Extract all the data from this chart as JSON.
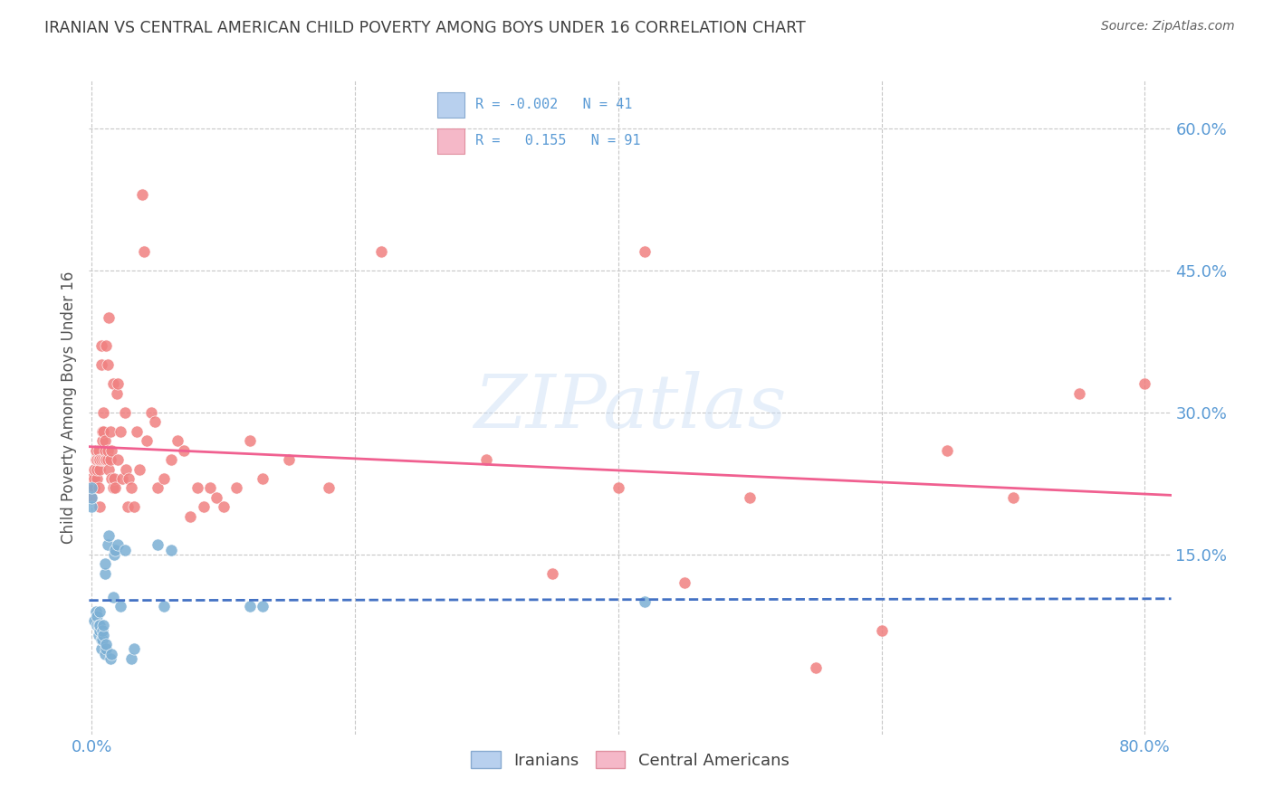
{
  "title": "IRANIAN VS CENTRAL AMERICAN CHILD POVERTY AMONG BOYS UNDER 16 CORRELATION CHART",
  "source": "Source: ZipAtlas.com",
  "ylabel": "Child Poverty Among Boys Under 16",
  "ytick_values": [
    0.6,
    0.45,
    0.3,
    0.15
  ],
  "xlim": [
    -0.002,
    0.82
  ],
  "ylim": [
    -0.04,
    0.65
  ],
  "xtick_positions": [
    0.0,
    0.2,
    0.4,
    0.6,
    0.8
  ],
  "legend_label_iranians": "Iranians",
  "legend_label_central": "Central Americans",
  "watermark": "ZIPatlas",
  "iranians_color": "#7bafd4",
  "central_color": "#f08080",
  "iranian_line_color": "#4472c4",
  "central_line_color": "#f06090",
  "background_color": "#ffffff",
  "title_color": "#404040",
  "axis_color": "#5b9bd5",
  "grid_color": "#c8c8c8",
  "iranians_x": [
    0.0,
    0.0,
    0.0,
    0.002,
    0.003,
    0.004,
    0.004,
    0.005,
    0.005,
    0.006,
    0.006,
    0.006,
    0.007,
    0.007,
    0.008,
    0.008,
    0.009,
    0.009,
    0.01,
    0.01,
    0.01,
    0.011,
    0.011,
    0.012,
    0.013,
    0.014,
    0.015,
    0.016,
    0.017,
    0.018,
    0.02,
    0.022,
    0.025,
    0.03,
    0.032,
    0.05,
    0.055,
    0.06,
    0.12,
    0.13,
    0.42
  ],
  "iranians_y": [
    0.2,
    0.21,
    0.22,
    0.08,
    0.09,
    0.075,
    0.085,
    0.065,
    0.075,
    0.07,
    0.075,
    0.09,
    0.05,
    0.06,
    0.06,
    0.07,
    0.065,
    0.075,
    0.13,
    0.14,
    0.045,
    0.05,
    0.055,
    0.16,
    0.17,
    0.04,
    0.045,
    0.105,
    0.15,
    0.155,
    0.16,
    0.095,
    0.155,
    0.04,
    0.05,
    0.16,
    0.095,
    0.155,
    0.095,
    0.095,
    0.1
  ],
  "central_x": [
    0.0,
    0.0,
    0.0,
    0.001,
    0.002,
    0.002,
    0.002,
    0.003,
    0.003,
    0.004,
    0.004,
    0.004,
    0.005,
    0.005,
    0.005,
    0.006,
    0.006,
    0.006,
    0.007,
    0.007,
    0.007,
    0.008,
    0.008,
    0.009,
    0.009,
    0.009,
    0.01,
    0.01,
    0.01,
    0.011,
    0.011,
    0.012,
    0.012,
    0.012,
    0.013,
    0.013,
    0.014,
    0.014,
    0.015,
    0.015,
    0.016,
    0.016,
    0.017,
    0.018,
    0.019,
    0.02,
    0.02,
    0.022,
    0.023,
    0.025,
    0.026,
    0.027,
    0.028,
    0.03,
    0.032,
    0.034,
    0.036,
    0.038,
    0.04,
    0.042,
    0.045,
    0.048,
    0.05,
    0.055,
    0.06,
    0.065,
    0.07,
    0.075,
    0.08,
    0.085,
    0.09,
    0.095,
    0.1,
    0.11,
    0.12,
    0.13,
    0.15,
    0.18,
    0.22,
    0.3,
    0.35,
    0.4,
    0.42,
    0.45,
    0.5,
    0.55,
    0.6,
    0.65,
    0.7,
    0.75,
    0.8
  ],
  "central_y": [
    0.21,
    0.22,
    0.23,
    0.22,
    0.22,
    0.23,
    0.24,
    0.25,
    0.26,
    0.23,
    0.24,
    0.25,
    0.22,
    0.25,
    0.26,
    0.2,
    0.24,
    0.25,
    0.35,
    0.37,
    0.25,
    0.27,
    0.28,
    0.25,
    0.28,
    0.3,
    0.25,
    0.26,
    0.27,
    0.25,
    0.37,
    0.25,
    0.26,
    0.35,
    0.24,
    0.4,
    0.25,
    0.28,
    0.23,
    0.26,
    0.22,
    0.33,
    0.23,
    0.22,
    0.32,
    0.33,
    0.25,
    0.28,
    0.23,
    0.3,
    0.24,
    0.2,
    0.23,
    0.22,
    0.2,
    0.28,
    0.24,
    0.53,
    0.47,
    0.27,
    0.3,
    0.29,
    0.22,
    0.23,
    0.25,
    0.27,
    0.26,
    0.19,
    0.22,
    0.2,
    0.22,
    0.21,
    0.2,
    0.22,
    0.27,
    0.23,
    0.25,
    0.22,
    0.47,
    0.25,
    0.13,
    0.22,
    0.47,
    0.12,
    0.21,
    0.03,
    0.07,
    0.26,
    0.21,
    0.32,
    0.33
  ]
}
